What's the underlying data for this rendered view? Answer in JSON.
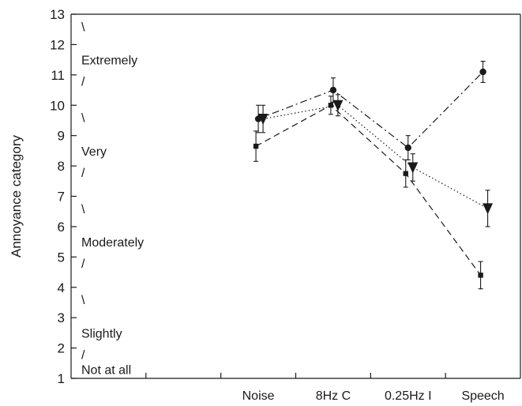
{
  "chart_data": {
    "type": "line",
    "title": "",
    "xlabel": "",
    "ylabel": "Annoyance category",
    "ylim": [
      1,
      13
    ],
    "yticks": [
      1,
      2,
      3,
      4,
      5,
      6,
      7,
      8,
      9,
      10,
      11,
      12,
      13
    ],
    "categories": [
      "Noise",
      "8Hz C",
      "0.25Hz I",
      "Speech"
    ],
    "category_annotations": [
      {
        "text": "Extremely",
        "y": 11.5
      },
      {
        "text": "Very",
        "y": 8.5
      },
      {
        "text": "Moderately",
        "y": 5.5
      },
      {
        "text": "Slightly",
        "y": 2.5
      },
      {
        "text": "Not at all",
        "y": 1.3
      }
    ],
    "boundary_marks": [
      {
        "text": "\\",
        "y": 12.6
      },
      {
        "text": "/",
        "y": 10.8
      },
      {
        "text": "\\",
        "y": 9.6
      },
      {
        "text": "/",
        "y": 7.8
      },
      {
        "text": "\\",
        "y": 6.6
      },
      {
        "text": "/",
        "y": 4.8
      },
      {
        "text": "\\",
        "y": 3.6
      },
      {
        "text": "/",
        "y": 1.8
      }
    ],
    "series": [
      {
        "marker": "circle",
        "line_style": "dash-dot",
        "values": [
          9.55,
          10.5,
          8.6,
          11.1
        ],
        "error": [
          0.45,
          0.4,
          0.4,
          0.35
        ]
      },
      {
        "marker": "triangle-down",
        "line_style": "dotted",
        "values": [
          9.55,
          10.0,
          7.95,
          6.6
        ],
        "error": [
          0.45,
          0.35,
          0.45,
          0.6
        ]
      },
      {
        "marker": "square",
        "line_style": "dashed",
        "values": [
          8.65,
          10.0,
          7.75,
          4.4
        ],
        "error": [
          0.5,
          0.3,
          0.45,
          0.45
        ]
      }
    ],
    "grid": false,
    "colors": {
      "ink": "#1a1a1a"
    }
  }
}
